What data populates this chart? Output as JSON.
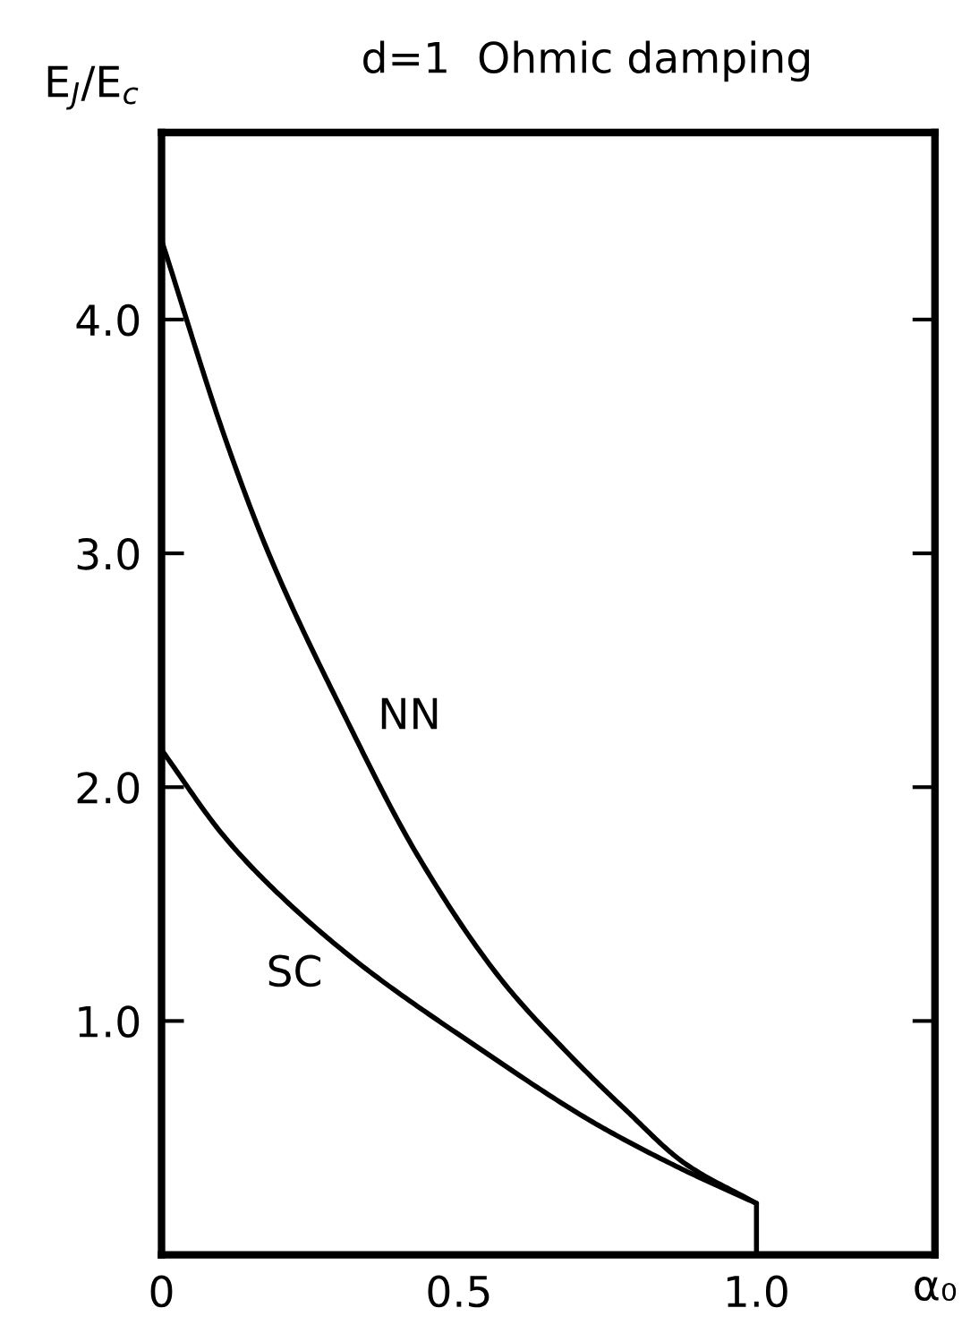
{
  "chart_data": {
    "type": "line",
    "title": "d=1  Ohmic damping",
    "xlabel": "α₀",
    "ylabel": "E$_{J}$/E$_{c}$",
    "xlim": [
      0,
      1.3
    ],
    "ylim": [
      0,
      4.8
    ],
    "xticks": [
      0,
      0.5,
      {
        "value": 1.0,
        "label": "1.0"
      }
    ],
    "yticks": [
      {
        "value": 1.0,
        "label": "1.0"
      },
      {
        "value": 2.0,
        "label": "2.0"
      },
      {
        "value": 3.0,
        "label": "3.0"
      },
      {
        "value": 4.0,
        "label": "4.0"
      }
    ],
    "grid": false,
    "legend": false,
    "marker": "none",
    "line_style": "solid",
    "series": [
      {
        "name": "NN",
        "color": "#000000",
        "x": [
          0,
          0.11,
          0.18,
          0.305,
          0.43,
          0.57,
          0.68,
          0.78,
          0.88,
          1.0
        ],
        "values": [
          4.34,
          3.47,
          3.0,
          2.32,
          1.71,
          1.18,
          0.87,
          0.62,
          0.39,
          0.22
        ]
      },
      {
        "name": "SC",
        "color": "#000000",
        "x": [
          0,
          0.105,
          0.19,
          0.33,
          0.53,
          0.73,
          0.88,
          1.0,
          1.0
        ],
        "values": [
          2.16,
          1.79,
          1.56,
          1.25,
          0.89,
          0.56,
          0.36,
          0.22,
          0
        ]
      }
    ]
  }
}
